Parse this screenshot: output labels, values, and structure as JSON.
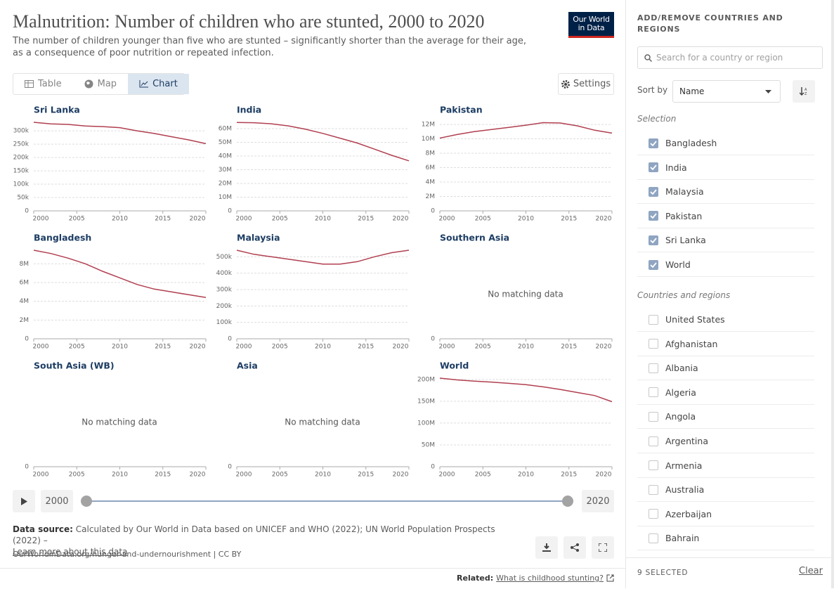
{
  "header": {
    "title": "Malnutrition: Number of children who are stunted, 2000 to 2020",
    "subtitle": "The number of children younger than five who are stunted – significantly shorter than the average for their age, as a consequence of poor nutrition or repeated infection.",
    "logo": [
      "Our World",
      "in Data"
    ]
  },
  "tabs": [
    "Table",
    "Map",
    "Chart"
  ],
  "settings_button": "Settings",
  "chart_data": [
    {
      "type": "line",
      "title": "Sri Lanka",
      "color": "#b13f50",
      "x": [
        2000,
        2002,
        2004,
        2006,
        2008,
        2010,
        2012,
        2014,
        2016,
        2018,
        2020
      ],
      "values": [
        332000,
        326000,
        324000,
        318000,
        316000,
        312000,
        300000,
        290000,
        278000,
        266000,
        252000
      ],
      "xlim": [
        2000,
        2020
      ],
      "xticks": [
        2000,
        2005,
        2010,
        2015,
        2020
      ],
      "ylim": [
        0,
        332000
      ],
      "yticks": [
        0,
        {
          "value": 50000,
          "label": "50k"
        },
        {
          "value": 100000,
          "label": "100k"
        },
        {
          "value": 150000,
          "label": "150k"
        },
        {
          "value": 200000,
          "label": "200k"
        },
        {
          "value": 250000,
          "label": "250k"
        },
        {
          "value": 300000,
          "label": "300k"
        }
      ]
    },
    {
      "type": "line",
      "title": "India",
      "color": "#b13f50",
      "x": [
        2000,
        2002,
        2004,
        2006,
        2008,
        2010,
        2012,
        2014,
        2016,
        2018,
        2020
      ],
      "values": [
        64500000,
        64300000,
        63500000,
        62000000,
        59500000,
        56500000,
        53000000,
        49500000,
        45000000,
        40500000,
        36500000
      ],
      "xlim": [
        2000,
        2020
      ],
      "xticks": [
        2000,
        2005,
        2010,
        2015,
        2020
      ],
      "ylim": [
        0,
        64600000
      ],
      "yticks": [
        0,
        {
          "value": 10000000,
          "label": "10M"
        },
        {
          "value": 20000000,
          "label": "20M"
        },
        {
          "value": 30000000,
          "label": "30M"
        },
        {
          "value": 40000000,
          "label": "40M"
        },
        {
          "value": 50000000,
          "label": "50M"
        },
        {
          "value": 60000000,
          "label": "60M"
        }
      ]
    },
    {
      "type": "line",
      "title": "Pakistan",
      "color": "#b13f50",
      "x": [
        2000,
        2002,
        2004,
        2006,
        2008,
        2010,
        2012,
        2014,
        2016,
        2018,
        2020
      ],
      "values": [
        10100000,
        10600000,
        11000000,
        11300000,
        11600000,
        11900000,
        12250000,
        12200000,
        11800000,
        11200000,
        10800000
      ],
      "xlim": [
        2000,
        2020
      ],
      "xticks": [
        2000,
        2005,
        2010,
        2015,
        2020
      ],
      "ylim": [
        0,
        12300000
      ],
      "yticks": [
        0,
        {
          "value": 2000000,
          "label": "2M"
        },
        {
          "value": 4000000,
          "label": "4M"
        },
        {
          "value": 6000000,
          "label": "6M"
        },
        {
          "value": 8000000,
          "label": "8M"
        },
        {
          "value": 10000000,
          "label": "10M"
        },
        {
          "value": 12000000,
          "label": "12M"
        }
      ]
    },
    {
      "type": "line",
      "title": "Bangladesh",
      "color": "#b13f50",
      "x": [
        2000,
        2002,
        2004,
        2006,
        2008,
        2010,
        2012,
        2014,
        2016,
        2018,
        2020
      ],
      "values": [
        9450000,
        9100000,
        8600000,
        8000000,
        7200000,
        6500000,
        5800000,
        5300000,
        5000000,
        4700000,
        4400000
      ],
      "xlim": [
        2000,
        2020
      ],
      "xticks": [
        2000,
        2005,
        2010,
        2015,
        2020
      ],
      "ylim": [
        0,
        9450000
      ],
      "yticks": [
        0,
        {
          "value": 2000000,
          "label": "2M"
        },
        {
          "value": 4000000,
          "label": "4M"
        },
        {
          "value": 6000000,
          "label": "6M"
        },
        {
          "value": 8000000,
          "label": "8M"
        }
      ]
    },
    {
      "type": "line",
      "title": "Malaysia",
      "color": "#b13f50",
      "x": [
        2000,
        2002,
        2004,
        2006,
        2008,
        2010,
        2012,
        2014,
        2016,
        2018,
        2020
      ],
      "values": [
        540000,
        515000,
        500000,
        485000,
        470000,
        455000,
        455000,
        470000,
        500000,
        525000,
        540000
      ],
      "xlim": [
        2000,
        2020
      ],
      "xticks": [
        2000,
        2005,
        2010,
        2015,
        2020
      ],
      "ylim": [
        0,
        540000
      ],
      "yticks": [
        0,
        {
          "value": 100000,
          "label": "100k"
        },
        {
          "value": 200000,
          "label": "200k"
        },
        {
          "value": 300000,
          "label": "300k"
        },
        {
          "value": 400000,
          "label": "400k"
        },
        {
          "value": 500000,
          "label": "500k"
        }
      ]
    },
    {
      "type": "line",
      "title": "Southern Asia",
      "message": "No matching data",
      "xlim": [
        2000,
        2020
      ],
      "xticks": [
        2000,
        2005,
        2010,
        2015,
        2020
      ],
      "yticks": [
        0
      ]
    },
    {
      "type": "line",
      "title": "South Asia (WB)",
      "message": "No matching data",
      "xlim": [
        2000,
        2020
      ],
      "xticks": [
        2000,
        2005,
        2010,
        2015,
        2020
      ],
      "yticks": [
        0
      ]
    },
    {
      "type": "line",
      "title": "Asia",
      "message": "No matching data",
      "xlim": [
        2000,
        2020
      ],
      "xticks": [
        2000,
        2005,
        2010,
        2015,
        2020
      ],
      "yticks": [
        0
      ]
    },
    {
      "type": "line",
      "title": "World",
      "color": "#b13f50",
      "x": [
        2000,
        2002,
        2004,
        2006,
        2008,
        2010,
        2012,
        2014,
        2016,
        2018,
        2020
      ],
      "values": [
        203000000,
        199000000,
        196000000,
        194000000,
        191000000,
        188000000,
        183000000,
        177000000,
        170000000,
        163000000,
        149000000
      ],
      "xlim": [
        2000,
        2020
      ],
      "xticks": [
        2000,
        2005,
        2010,
        2015,
        2020
      ],
      "ylim": [
        0,
        203000000
      ],
      "yticks": [
        0,
        {
          "value": 50000000,
          "label": "50M"
        },
        {
          "value": 100000000,
          "label": "100M"
        },
        {
          "value": 150000000,
          "label": "150M"
        },
        {
          "value": 200000000,
          "label": "200M"
        }
      ]
    }
  ],
  "timeline": {
    "start": "2000",
    "end": "2020"
  },
  "footer": {
    "source_label": "Data source:",
    "source_text": "Calculated by Our World in Data based on UNICEF and WHO (2022); UN World Population Prospects (2022) –",
    "learn_more": "Learn more about this data",
    "url": "OurWorldinData.org/hunger-and-undernourishment | CC BY",
    "related_label": "Related:",
    "related_link": "What is childhood stunting?"
  },
  "sidebar": {
    "heading": "ADD/REMOVE COUNTRIES AND REGIONS",
    "search_placeholder": "Search for a country or region",
    "sort_label": "Sort by",
    "sort_value": "Name",
    "selection_heading": "Selection",
    "selected": [
      "Bangladesh",
      "India",
      "Malaysia",
      "Pakistan",
      "Sri Lanka",
      "World"
    ],
    "others_heading": "Countries and regions",
    "others": [
      "United States",
      "Afghanistan",
      "Albania",
      "Algeria",
      "Angola",
      "Argentina",
      "Armenia",
      "Australia",
      "Azerbaijan",
      "Bahrain"
    ],
    "selected_count": "9 SELECTED",
    "clear": "Clear"
  }
}
